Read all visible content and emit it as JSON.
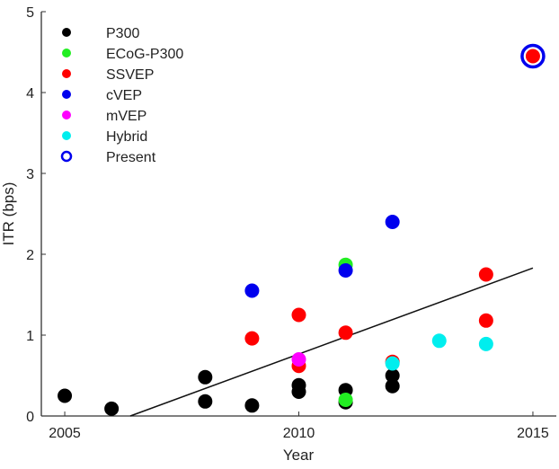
{
  "chart_data": {
    "type": "scatter",
    "title": "",
    "xlabel": "Year",
    "ylabel": "ITR (bps)",
    "xlim": [
      2004.5,
      2015.5
    ],
    "ylim": [
      0,
      5
    ],
    "xticks": [
      "2005",
      "2010",
      "2015"
    ],
    "xtick_values": [
      2005,
      2010,
      2015
    ],
    "yticks": [
      "0",
      "1",
      "2",
      "3",
      "4",
      "5"
    ],
    "ytick_values": [
      0,
      1,
      2,
      3,
      4,
      5
    ],
    "grid": false,
    "legend_position": "top-left",
    "series": [
      {
        "name": "P300",
        "color": "#000000",
        "points": [
          [
            2005,
            0.25
          ],
          [
            2006,
            0.09
          ],
          [
            2008,
            0.48
          ],
          [
            2008,
            0.18
          ],
          [
            2009,
            0.13
          ],
          [
            2010,
            0.38
          ],
          [
            2010,
            0.3
          ],
          [
            2011,
            0.32
          ],
          [
            2011,
            0.17
          ],
          [
            2012,
            0.5
          ],
          [
            2012,
            0.37
          ]
        ]
      },
      {
        "name": "ECoG-P300",
        "color": "#22ee22",
        "points": [
          [
            2011,
            1.87
          ],
          [
            2011,
            0.2
          ]
        ]
      },
      {
        "name": "SSVEP",
        "color": "#ff0000",
        "points": [
          [
            2009,
            0.96
          ],
          [
            2010,
            1.25
          ],
          [
            2010,
            0.62
          ],
          [
            2011,
            1.03
          ],
          [
            2012,
            0.67
          ],
          [
            2014,
            1.75
          ],
          [
            2014,
            1.18
          ],
          [
            2015,
            4.45
          ]
        ]
      },
      {
        "name": "cVEP",
        "color": "#0000ee",
        "points": [
          [
            2009,
            1.55
          ],
          [
            2011,
            1.8
          ],
          [
            2012,
            2.4
          ]
        ]
      },
      {
        "name": "mVEP",
        "color": "#ff00ff",
        "points": [
          [
            2010,
            0.7
          ]
        ]
      },
      {
        "name": "Hybrid",
        "color": "#00eeee",
        "points": [
          [
            2012,
            0.65
          ],
          [
            2013,
            0.93
          ],
          [
            2014,
            0.89
          ]
        ]
      },
      {
        "name": "Present",
        "color": "#0000ee",
        "marker": "ring",
        "points": [
          [
            2015,
            4.45
          ]
        ]
      }
    ],
    "trend_line": {
      "from": [
        2006.4,
        0
      ],
      "to": [
        2015,
        1.83
      ]
    }
  }
}
